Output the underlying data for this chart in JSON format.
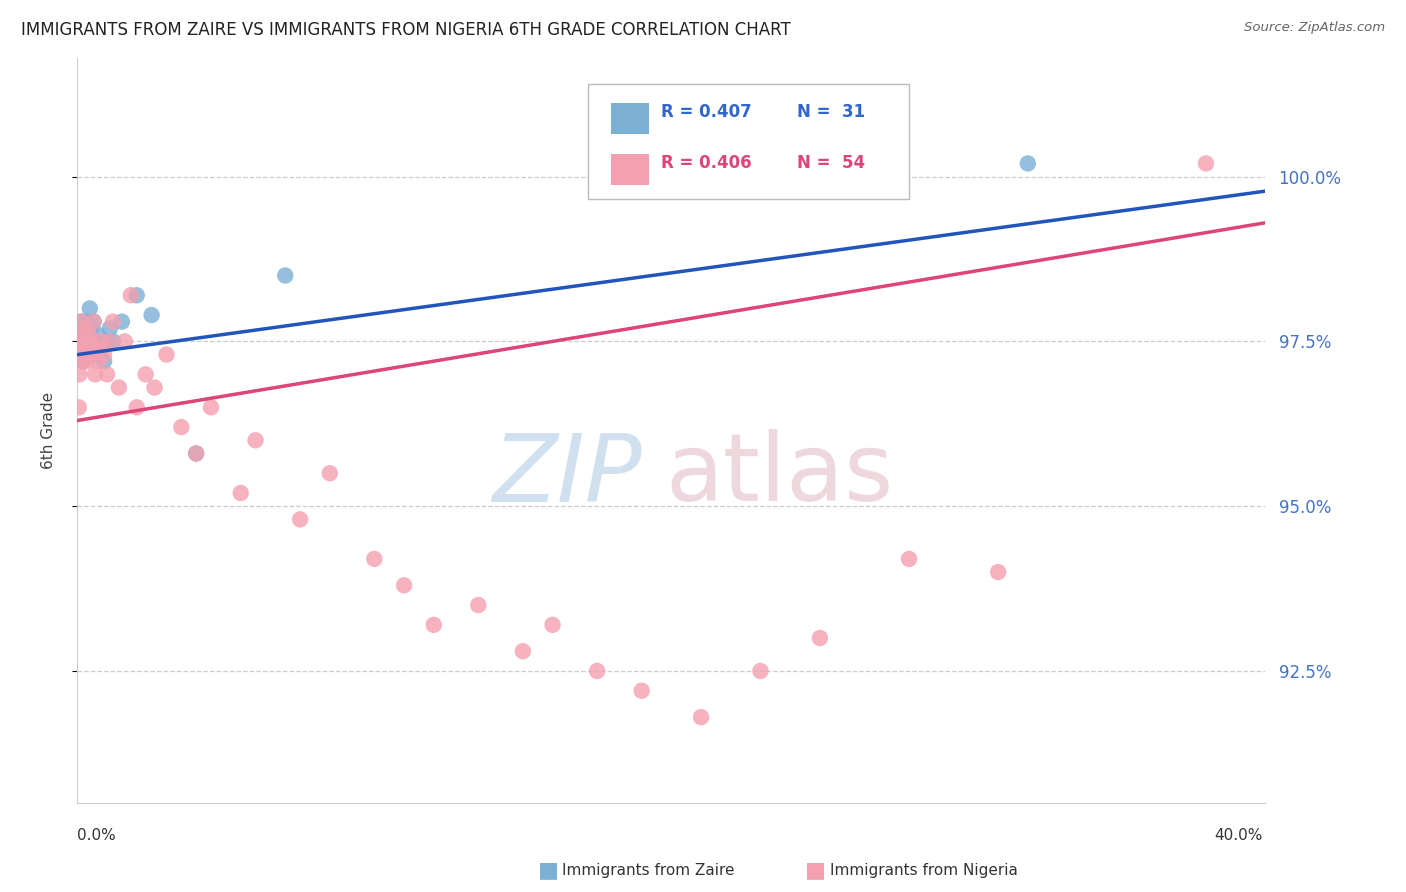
{
  "title": "IMMIGRANTS FROM ZAIRE VS IMMIGRANTS FROM NIGERIA 6TH GRADE CORRELATION CHART",
  "source": "Source: ZipAtlas.com",
  "ylabel": "6th Grade",
  "y_tick_values": [
    92.5,
    95.0,
    97.5,
    100.0
  ],
  "x_min": 0.0,
  "x_max": 40.0,
  "y_min": 90.5,
  "y_max": 101.8,
  "zaire_color": "#7bafd4",
  "nigeria_color": "#f4a0b0",
  "zaire_line_color": "#2255bb",
  "nigeria_line_color": "#dd4477",
  "legend_r_zaire": "R = 0.407",
  "legend_n_zaire": "N =  31",
  "legend_r_nigeria": "R = 0.406",
  "legend_n_nigeria": "N =  54",
  "zaire_x": [
    0.05,
    0.1,
    0.12,
    0.15,
    0.18,
    0.2,
    0.22,
    0.25,
    0.28,
    0.3,
    0.32,
    0.35,
    0.38,
    0.4,
    0.42,
    0.45,
    0.5,
    0.55,
    0.6,
    0.7,
    0.8,
    0.9,
    1.0,
    1.1,
    1.2,
    1.5,
    2.0,
    2.5,
    4.0,
    7.0,
    32.0
  ],
  "zaire_y": [
    97.3,
    97.5,
    97.8,
    97.6,
    97.4,
    97.2,
    97.7,
    97.5,
    97.6,
    97.3,
    97.8,
    97.4,
    97.5,
    97.6,
    98.0,
    97.7,
    97.5,
    97.8,
    97.3,
    97.6,
    97.4,
    97.2,
    97.5,
    97.7,
    97.5,
    97.8,
    98.2,
    97.9,
    95.8,
    98.5,
    100.2
  ],
  "nigeria_x": [
    0.05,
    0.07,
    0.09,
    0.11,
    0.13,
    0.15,
    0.17,
    0.19,
    0.21,
    0.24,
    0.27,
    0.3,
    0.33,
    0.37,
    0.4,
    0.45,
    0.5,
    0.55,
    0.6,
    0.65,
    0.7,
    0.8,
    0.9,
    1.0,
    1.1,
    1.2,
    1.4,
    1.6,
    1.8,
    2.0,
    2.3,
    2.6,
    3.0,
    3.5,
    4.0,
    4.5,
    5.5,
    6.0,
    7.5,
    8.5,
    10.0,
    11.0,
    12.0,
    13.5,
    15.0,
    16.0,
    17.5,
    19.0,
    21.0,
    23.0,
    25.0,
    28.0,
    31.0,
    38.0
  ],
  "nigeria_y": [
    96.5,
    97.0,
    97.3,
    97.5,
    97.8,
    97.5,
    97.2,
    97.6,
    97.4,
    97.3,
    97.7,
    97.5,
    97.2,
    97.4,
    97.6,
    97.5,
    97.3,
    97.8,
    97.0,
    97.4,
    97.2,
    97.5,
    97.3,
    97.0,
    97.5,
    97.8,
    96.8,
    97.5,
    98.2,
    96.5,
    97.0,
    96.8,
    97.3,
    96.2,
    95.8,
    96.5,
    95.2,
    96.0,
    94.8,
    95.5,
    94.2,
    93.8,
    93.2,
    93.5,
    92.8,
    93.2,
    92.5,
    92.2,
    91.8,
    92.5,
    93.0,
    94.2,
    94.0,
    100.2
  ]
}
